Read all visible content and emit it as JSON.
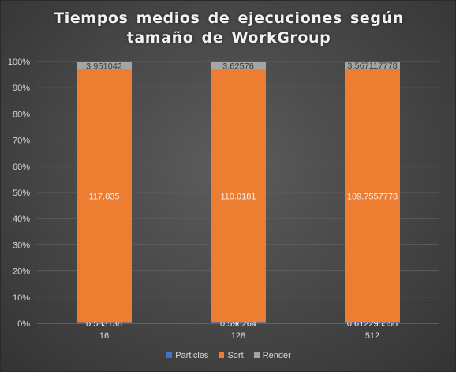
{
  "chart_data": {
    "type": "bar",
    "stacked": "percent",
    "title_lines": [
      "Tiempos medios de ejecuciones según",
      "tamaño de WorkGroup"
    ],
    "categories": [
      "16",
      "128",
      "512"
    ],
    "series": [
      {
        "name": "Particles",
        "color": "#4472c4",
        "values": [
          0.583138,
          0.596264,
          0.612295556
        ],
        "labels": [
          "0.583138",
          "0.596264",
          "0.612295556"
        ]
      },
      {
        "name": "Sort",
        "color": "#ed7d31",
        "values": [
          117.035,
          110.0181,
          109.7557778
        ],
        "labels": [
          "117.035",
          "110.0181",
          "109.7557778"
        ]
      },
      {
        "name": "Render",
        "color": "#a5a5a5",
        "values": [
          3.951042,
          3.62576,
          3.567117778
        ],
        "labels": [
          "3.951042",
          "3.62576",
          "3.567117778"
        ]
      }
    ],
    "yticks": [
      "0%",
      "10%",
      "20%",
      "30%",
      "40%",
      "50%",
      "60%",
      "70%",
      "80%",
      "90%",
      "100%"
    ],
    "ylim": [
      0,
      100
    ],
    "grid": true,
    "legend_position": "bottom"
  }
}
